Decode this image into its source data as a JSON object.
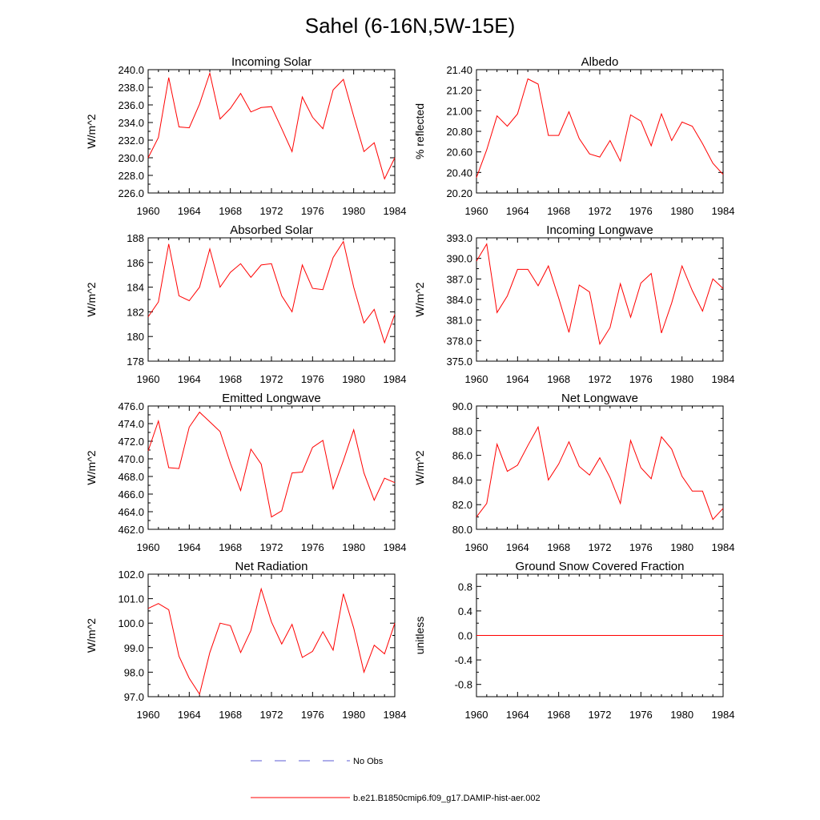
{
  "title": "Sahel (6-16N,5W-15E)",
  "series_color": "#ff0000",
  "obs_color": "#5b5bd6",
  "legend": {
    "obs_label": "No Obs",
    "model_label": "b.e21.B1850cmip6.f09_g17.DAMIP-hist-aer.002"
  },
  "chart_data": [
    {
      "type": "line",
      "title": "Incoming Solar",
      "ylabel": "W/m^2",
      "xlim": [
        1960,
        1984
      ],
      "ylim": [
        226,
        240
      ],
      "xticks": [
        1960,
        1964,
        1968,
        1972,
        1976,
        1980,
        1984
      ],
      "yticks": [
        226,
        228,
        230,
        232,
        234,
        236,
        238,
        240
      ],
      "ytick_labels": [
        "226.0",
        "228.0",
        "230.0",
        "232.0",
        "234.0",
        "236.0",
        "238.0",
        "240.0"
      ],
      "x": [
        1960,
        1961,
        1962,
        1963,
        1964,
        1965,
        1966,
        1967,
        1968,
        1969,
        1970,
        1971,
        1972,
        1973,
        1974,
        1975,
        1976,
        1977,
        1978,
        1979,
        1980,
        1981,
        1982,
        1983,
        1984
      ],
      "series": [
        {
          "values": [
            230.0,
            232.3,
            239.1,
            233.5,
            233.4,
            236.1,
            239.6,
            234.4,
            235.6,
            237.3,
            235.2,
            235.7,
            235.8,
            233.3,
            230.7,
            236.9,
            234.6,
            233.3,
            237.7,
            238.9,
            234.7,
            230.7,
            231.7,
            227.6,
            230.0
          ]
        }
      ]
    },
    {
      "type": "line",
      "title": "Albedo",
      "ylabel": "% reflected",
      "xlim": [
        1960,
        1984
      ],
      "ylim": [
        20.2,
        21.4
      ],
      "xticks": [
        1960,
        1964,
        1968,
        1972,
        1976,
        1980,
        1984
      ],
      "yticks": [
        20.2,
        20.4,
        20.6,
        20.8,
        21.0,
        21.2,
        21.4
      ],
      "ytick_labels": [
        "20.20",
        "20.40",
        "20.60",
        "20.80",
        "21.00",
        "21.20",
        "21.40"
      ],
      "x": [
        1960,
        1961,
        1962,
        1963,
        1964,
        1965,
        1966,
        1967,
        1968,
        1969,
        1970,
        1971,
        1972,
        1973,
        1974,
        1975,
        1976,
        1977,
        1978,
        1979,
        1980,
        1981,
        1982,
        1983,
        1984
      ],
      "series": [
        {
          "values": [
            20.35,
            20.62,
            20.95,
            20.85,
            20.97,
            21.31,
            21.26,
            20.76,
            20.76,
            20.99,
            20.73,
            20.58,
            20.55,
            20.71,
            20.51,
            20.96,
            20.9,
            20.66,
            20.97,
            20.71,
            20.89,
            20.85,
            20.68,
            20.49,
            20.38
          ]
        }
      ]
    },
    {
      "type": "line",
      "title": "Absorbed Solar",
      "ylabel": "W/m^2",
      "xlim": [
        1960,
        1984
      ],
      "ylim": [
        178,
        188
      ],
      "xticks": [
        1960,
        1964,
        1968,
        1972,
        1976,
        1980,
        1984
      ],
      "yticks": [
        178,
        180,
        182,
        184,
        186,
        188
      ],
      "ytick_labels": [
        "178",
        "180",
        "182",
        "184",
        "186",
        "188"
      ],
      "x": [
        1960,
        1961,
        1962,
        1963,
        1964,
        1965,
        1966,
        1967,
        1968,
        1969,
        1970,
        1971,
        1972,
        1973,
        1974,
        1975,
        1976,
        1977,
        1978,
        1979,
        1980,
        1981,
        1982,
        1983,
        1984
      ],
      "series": [
        {
          "values": [
            181.6,
            182.8,
            187.5,
            183.3,
            182.9,
            184.0,
            187.1,
            184.0,
            185.2,
            185.9,
            184.8,
            185.8,
            185.9,
            183.3,
            182.0,
            185.8,
            183.9,
            183.8,
            186.4,
            187.7,
            184.0,
            181.1,
            182.2,
            179.5,
            181.8
          ]
        }
      ]
    },
    {
      "type": "line",
      "title": "Incoming Longwave",
      "ylabel": "W/m^2",
      "xlim": [
        1960,
        1984
      ],
      "ylim": [
        375,
        393
      ],
      "xticks": [
        1960,
        1964,
        1968,
        1972,
        1976,
        1980,
        1984
      ],
      "yticks": [
        375,
        378,
        381,
        384,
        387,
        390,
        393
      ],
      "ytick_labels": [
        "375.0",
        "378.0",
        "381.0",
        "384.0",
        "387.0",
        "390.0",
        "393.0"
      ],
      "x": [
        1960,
        1961,
        1962,
        1963,
        1964,
        1965,
        1966,
        1967,
        1968,
        1969,
        1970,
        1971,
        1972,
        1973,
        1974,
        1975,
        1976,
        1977,
        1978,
        1979,
        1980,
        1981,
        1982,
        1983,
        1984
      ],
      "series": [
        {
          "values": [
            389.6,
            392.1,
            382.1,
            384.5,
            388.4,
            388.4,
            386.0,
            388.9,
            384.2,
            379.2,
            386.1,
            385.1,
            377.5,
            379.9,
            386.3,
            381.4,
            386.4,
            387.8,
            379.1,
            383.5,
            388.9,
            385.3,
            382.3,
            387.0,
            385.6
          ]
        }
      ]
    },
    {
      "type": "line",
      "title": "Emitted Longwave",
      "ylabel": "W/m^2",
      "xlim": [
        1960,
        1984
      ],
      "ylim": [
        462,
        476
      ],
      "xticks": [
        1960,
        1964,
        1968,
        1972,
        1976,
        1980,
        1984
      ],
      "yticks": [
        462,
        464,
        466,
        468,
        470,
        472,
        474,
        476
      ],
      "ytick_labels": [
        "462.0",
        "464.0",
        "466.0",
        "468.0",
        "470.0",
        "472.0",
        "474.0",
        "476.0"
      ],
      "x": [
        1960,
        1961,
        1962,
        1963,
        1964,
        1965,
        1966,
        1967,
        1968,
        1969,
        1970,
        1971,
        1972,
        1973,
        1974,
        1975,
        1976,
        1977,
        1978,
        1979,
        1980,
        1981,
        1982,
        1983,
        1984
      ],
      "series": [
        {
          "values": [
            470.9,
            474.3,
            469.0,
            468.9,
            473.6,
            475.3,
            474.2,
            473.1,
            469.5,
            466.4,
            471.1,
            469.4,
            463.4,
            464.1,
            468.4,
            468.5,
            471.3,
            472.1,
            466.6,
            469.8,
            473.3,
            468.4,
            465.3,
            467.8,
            467.3
          ]
        }
      ]
    },
    {
      "type": "line",
      "title": "Net Longwave",
      "ylabel": "W/m^2",
      "xlim": [
        1960,
        1984
      ],
      "ylim": [
        80,
        90
      ],
      "xticks": [
        1960,
        1964,
        1968,
        1972,
        1976,
        1980,
        1984
      ],
      "yticks": [
        80,
        82,
        84,
        86,
        88,
        90
      ],
      "ytick_labels": [
        "80.0",
        "82.0",
        "84.0",
        "86.0",
        "88.0",
        "90.0"
      ],
      "x": [
        1960,
        1961,
        1962,
        1963,
        1964,
        1965,
        1966,
        1967,
        1968,
        1969,
        1970,
        1971,
        1972,
        1973,
        1974,
        1975,
        1976,
        1977,
        1978,
        1979,
        1980,
        1981,
        1982,
        1983,
        1984
      ],
      "series": [
        {
          "values": [
            81.0,
            82.1,
            86.9,
            84.7,
            85.2,
            86.8,
            88.3,
            84.0,
            85.3,
            87.1,
            85.1,
            84.4,
            85.8,
            84.2,
            82.1,
            87.2,
            85.0,
            84.1,
            87.5,
            86.5,
            84.3,
            83.1,
            83.1,
            80.8,
            81.7
          ]
        }
      ]
    },
    {
      "type": "line",
      "title": "Net Radiation",
      "ylabel": "W/m^2",
      "xlim": [
        1960,
        1984
      ],
      "ylim": [
        97,
        102
      ],
      "xticks": [
        1960,
        1964,
        1968,
        1972,
        1976,
        1980,
        1984
      ],
      "yticks": [
        97,
        98,
        99,
        100,
        101,
        102
      ],
      "ytick_labels": [
        "97.0",
        "98.0",
        "99.0",
        "100.0",
        "101.0",
        "102.0"
      ],
      "x": [
        1960,
        1961,
        1962,
        1963,
        1964,
        1965,
        1966,
        1967,
        1968,
        1969,
        1970,
        1971,
        1972,
        1973,
        1974,
        1975,
        1976,
        1977,
        1978,
        1979,
        1980,
        1981,
        1982,
        1983,
        1984
      ],
      "series": [
        {
          "values": [
            100.6,
            100.8,
            100.55,
            98.65,
            97.75,
            97.1,
            98.8,
            100.0,
            99.9,
            98.8,
            99.7,
            101.4,
            100.05,
            99.15,
            99.95,
            98.6,
            98.85,
            99.65,
            98.9,
            101.2,
            99.8,
            98.0,
            99.1,
            98.75,
            100.0
          ]
        }
      ]
    },
    {
      "type": "line",
      "title": "Ground Snow Covered Fraction",
      "ylabel": "unitless",
      "xlim": [
        1960,
        1984
      ],
      "ylim": [
        -1,
        1
      ],
      "xticks": [
        1960,
        1964,
        1968,
        1972,
        1976,
        1980,
        1984
      ],
      "yticks": [
        -0.8,
        -0.4,
        0.0,
        0.4,
        0.8
      ],
      "ytick_labels": [
        "-0.8",
        "-0.4",
        "0.0",
        "0.4",
        "0.8"
      ],
      "x": [
        1960,
        1984
      ],
      "series": [
        {
          "values": [
            0.0,
            0.0
          ]
        }
      ]
    }
  ]
}
